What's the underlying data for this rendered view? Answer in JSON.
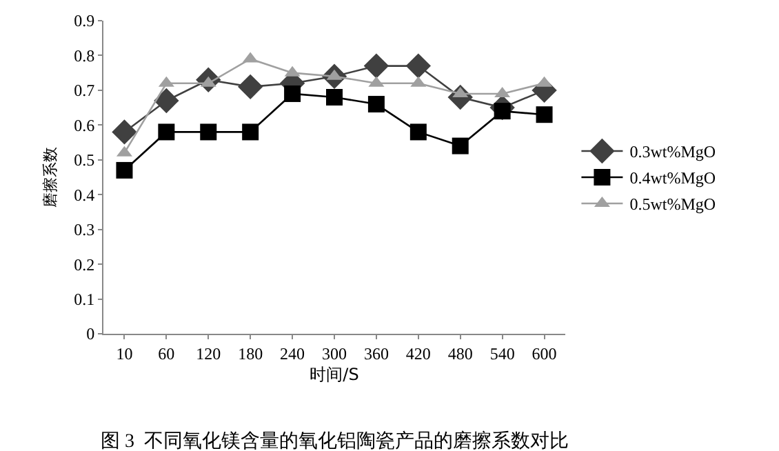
{
  "chart_data": {
    "type": "line",
    "xlabel": "时间/S",
    "ylabel": "磨擦系数",
    "categories": [
      "10",
      "60",
      "120",
      "180",
      "240",
      "300",
      "360",
      "420",
      "480",
      "540",
      "600"
    ],
    "series": [
      {
        "name": "0.3wt%MgO",
        "color": "#404040",
        "marker": "diamond",
        "values": [
          0.58,
          0.67,
          0.73,
          0.71,
          0.72,
          0.74,
          0.77,
          0.77,
          0.68,
          0.65,
          0.7
        ]
      },
      {
        "name": "0.4wt%MgO",
        "color": "#000000",
        "marker": "square",
        "values": [
          0.47,
          0.58,
          0.58,
          0.58,
          0.69,
          0.68,
          0.66,
          0.58,
          0.54,
          0.64,
          0.63
        ]
      },
      {
        "name": "0.5wt%MgO",
        "color": "#a0a0a0",
        "marker": "triangle",
        "values": [
          0.52,
          0.72,
          0.72,
          0.79,
          0.75,
          0.74,
          0.72,
          0.72,
          0.69,
          0.69,
          0.72
        ]
      }
    ],
    "ylim": [
      0,
      0.9
    ],
    "yticks": [
      0,
      {
        "value": 0.1,
        "label": "0.1"
      },
      {
        "value": 0.2,
        "label": "0.2"
      },
      {
        "value": 0.3,
        "label": "0.3"
      },
      {
        "value": 0.4,
        "label": "0.4"
      },
      {
        "value": 0.5,
        "label": "0.5"
      },
      {
        "value": 0.6,
        "label": "0.6"
      },
      {
        "value": 0.7,
        "label": "0.7"
      },
      {
        "value": 0.8,
        "label": "0.8"
      },
      {
        "value": 0.9,
        "label": "0.9"
      }
    ],
    "grid": false,
    "legend": "right",
    "line_style": "solid",
    "annotations": [
      "图 3  不同氧化镁含量的氧化铝陶瓷产品的磨擦系数对比"
    ]
  }
}
